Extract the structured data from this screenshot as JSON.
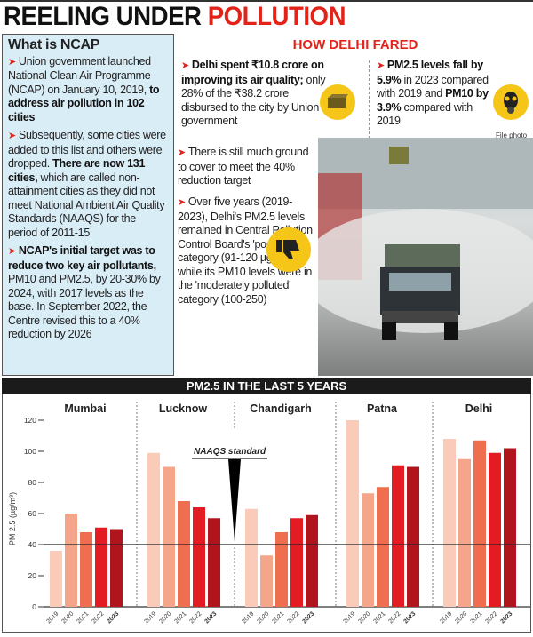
{
  "title": {
    "part1": "REELING UNDER",
    "part2": "POLLUTION"
  },
  "ncap": {
    "heading": "What is NCAP",
    "p1": {
      "text": "Union government launched National Clean Air Programme (NCAP) on January 10, 2019,",
      "bold": " to address air pollution in 102 cities"
    },
    "p2": {
      "text": "Subsequently, some cities were added to this list and others were dropped.",
      "bold": " There are now 131 cities,",
      "text2": " which are called non-attainment cities as they did not meet National Ambient Air Quality Standards (NAAQS) for the period of 2011-15"
    },
    "p3": {
      "bold": "NCAP's initial target was to reduce two key air pollutants,",
      "text": " PM10 and PM2.5, by 20-30% by 2024, with 2017 levels as the base. In September 2022, the Centre revised this to a 40% reduction by 2026"
    }
  },
  "delhi": {
    "heading": "HOW DELHI FARED",
    "spent": {
      "bold": "Delhi spent ₹10.8 crore on improving its air quality;",
      "text": " only 28% of the ₹38.2 crore disbursed to the city by Union government"
    },
    "fall": {
      "bold": "PM2.5 levels fall by 5.9%",
      "text": " in 2023 compared with 2019 and ",
      "bold2": "PM10 by 3.9%",
      "text2": " compared with 2019"
    },
    "ground": "There is still much ground to cover to meet the 40% reduction target",
    "five": "Over five years (2019-2023), Delhi's PM2.5 levels remained in Central Pollution Control Board's 'poor' category (91-120 µg/m³), while its PM10 levels were in the 'moderately polluted' category (100-250)",
    "file_photo": "File photo",
    "icons": [
      "money-bundle-icon",
      "gas-mask-icon",
      "thumbs-down-icon"
    ]
  },
  "chart_data": {
    "type": "bar",
    "title": "PM2.5  IN THE LAST 5 YEARS",
    "ylabel": "PM 2.5 (µg/m³)",
    "ylim": [
      0,
      120
    ],
    "yticks": [
      0,
      20,
      40,
      60,
      80,
      100,
      120
    ],
    "reference": {
      "label": "NAAQS standard",
      "value": 40
    },
    "categories": [
      "2019",
      "2020",
      "2021",
      "2022",
      "2023"
    ],
    "colors": [
      "#f9cbb8",
      "#f5a589",
      "#ef6e50",
      "#e31b23",
      "#b0151d"
    ],
    "groups": [
      {
        "name": "Mumbai",
        "values": [
          36,
          60,
          48,
          51,
          50
        ]
      },
      {
        "name": "Lucknow",
        "values": [
          99,
          90,
          68,
          64,
          57
        ]
      },
      {
        "name": "Chandigarh",
        "values": [
          63,
          33,
          48,
          57,
          59
        ]
      },
      {
        "name": "Patna",
        "values": [
          120,
          73,
          77,
          91,
          90
        ]
      },
      {
        "name": "Delhi",
        "values": [
          108,
          95,
          107,
          99,
          102
        ]
      }
    ]
  }
}
